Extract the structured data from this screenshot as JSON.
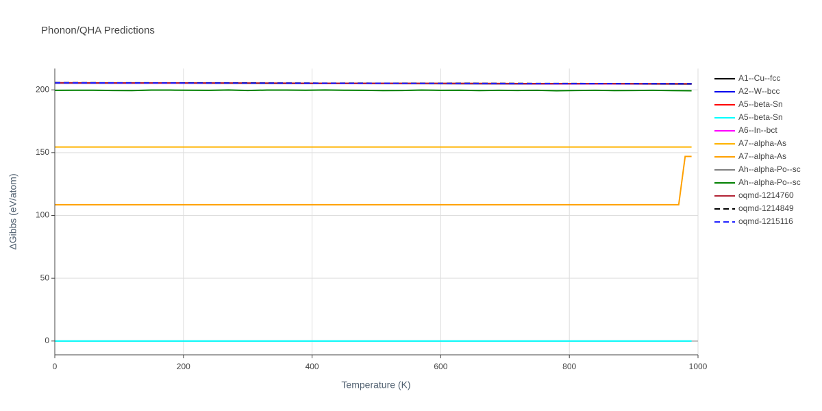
{
  "chart_data": {
    "type": "line",
    "title": "Phonon/QHA Predictions",
    "x_label": "Temperature (K)",
    "y_label": "ΔGibbs (eV/atom)",
    "xlim": [
      0,
      1000
    ],
    "ylim": [
      -11,
      217
    ],
    "xticks": [
      0,
      200,
      400,
      600,
      800,
      1000
    ],
    "yticks": [
      0,
      50,
      100,
      150,
      200
    ],
    "grid": true,
    "legend": "right",
    "series": [
      {
        "name": "A1--Cu--fcc",
        "color": "#000000",
        "dash": "solid",
        "x": [
          0,
          990
        ],
        "values": [
          205.4,
          204.6
        ]
      },
      {
        "name": "A2--W--bcc",
        "color": "#0000ee",
        "dash": "solid",
        "x": [
          0,
          990
        ],
        "values": [
          205.5,
          204.7
        ]
      },
      {
        "name": "A5--beta-Sn",
        "color": "#ff0000",
        "dash": "solid",
        "x": [
          0,
          990
        ],
        "values": [
          205.6,
          204.8
        ]
      },
      {
        "name": "A5--beta-Sn",
        "color": "#00ffff",
        "dash": "solid",
        "x": [
          0,
          990
        ],
        "values": [
          0,
          0
        ]
      },
      {
        "name": "A6--In--bct",
        "color": "#ff00ff",
        "dash": "solid",
        "x": [
          0,
          990
        ],
        "values": [
          205.5,
          204.7
        ]
      },
      {
        "name": "A7--alpha-As",
        "color": "#ffb300",
        "dash": "solid",
        "x": [
          0,
          990
        ],
        "values": [
          154.5,
          154.5
        ]
      },
      {
        "name": "A7--alpha-As",
        "color": "#ffa000",
        "dash": "solid",
        "x": [
          0,
          970,
          980,
          990
        ],
        "values": [
          108.5,
          108.5,
          147,
          147
        ]
      },
      {
        "name": "Ah--alpha-Po--sc",
        "color": "#808080",
        "dash": "solid",
        "x": [
          0,
          990
        ],
        "values": [
          205.6,
          204.8
        ]
      },
      {
        "name": "Ah--alpha-Po--sc",
        "color": "#008000",
        "dash": "solid",
        "x": [
          0,
          30,
          60,
          90,
          120,
          150,
          180,
          210,
          240,
          270,
          300,
          330,
          360,
          390,
          420,
          450,
          480,
          510,
          540,
          570,
          600,
          630,
          660,
          690,
          720,
          750,
          780,
          810,
          840,
          870,
          900,
          930,
          960,
          990
        ],
        "values": [
          199.6,
          199.7,
          199.7,
          199.5,
          199.4,
          199.8,
          199.8,
          199.7,
          199.6,
          199.9,
          199.5,
          199.8,
          199.8,
          199.7,
          199.9,
          199.7,
          199.6,
          199.4,
          199.5,
          199.8,
          199.6,
          199.7,
          199.4,
          199.6,
          199.5,
          199.6,
          199.3,
          199.5,
          199.6,
          199.4,
          199.5,
          199.6,
          199.4,
          199.3
        ]
      },
      {
        "name": "oqmd-1214760",
        "color": "#b22234",
        "dash": "solid",
        "x": [
          0,
          990
        ],
        "values": [
          205.6,
          204.8
        ]
      },
      {
        "name": "oqmd-1214849",
        "color": "#000000",
        "dash": "dash",
        "x": [
          0,
          990
        ],
        "values": [
          205.7,
          204.9
        ]
      },
      {
        "name": "oqmd-1215116",
        "color": "#2222ff",
        "dash": "dash",
        "x": [
          0,
          990
        ],
        "values": [
          205.6,
          204.8
        ]
      }
    ]
  }
}
